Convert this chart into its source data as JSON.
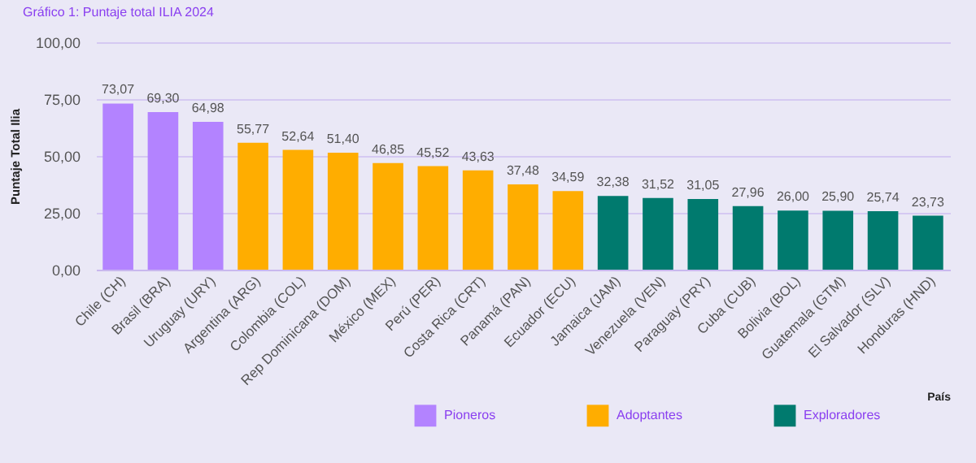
{
  "chart_data": {
    "type": "bar",
    "title": "Gráfico 1: Puntaje total ILIA 2024",
    "xlabel": "País",
    "ylabel": "Puntaje Total Ilia",
    "categories": [
      "Chile (CH)",
      "Brasil (BRA)",
      "Uruguay (URY)",
      "Argentina (ARG)",
      "Colombia (COL)",
      "Rep Dominicana (DOM)",
      "México (MEX)",
      "Perú (PER)",
      "Costa Rica (CRT)",
      "Panamá (PAN)",
      "Ecuador (ECU)",
      "Jamaica (JAM)",
      "Venezuela (VEN)",
      "Paraguay (PRY)",
      "Cuba (CUB)",
      "Bolivia (BOL)",
      "Guatemala (GTM)",
      "El Salvador (SLV)",
      "Honduras (HND)"
    ],
    "series": [
      {
        "name": "Pioneros",
        "color": "#b383ff",
        "values": [
          73.07,
          69.3,
          64.98,
          null,
          null,
          null,
          null,
          null,
          null,
          null,
          null,
          null,
          null,
          null,
          null,
          null,
          null,
          null,
          null
        ],
        "value_labels": [
          "73,07",
          "69,30",
          "64,98",
          null,
          null,
          null,
          null,
          null,
          null,
          null,
          null,
          null,
          null,
          null,
          null,
          null,
          null,
          null,
          null
        ]
      },
      {
        "name": "Adoptantes",
        "color": "#ffad00",
        "values": [
          null,
          null,
          null,
          55.77,
          52.64,
          51.4,
          46.85,
          45.52,
          43.63,
          37.48,
          34.59,
          null,
          null,
          null,
          null,
          null,
          null,
          null,
          null
        ],
        "value_labels": [
          null,
          null,
          null,
          "55,77",
          "52,64",
          "51,40",
          "46,85",
          "45,52",
          "43,63",
          "37,48",
          "34,59",
          null,
          null,
          null,
          null,
          null,
          null,
          null,
          null
        ]
      },
      {
        "name": "Exploradores",
        "color": "#007a6e",
        "values": [
          null,
          null,
          null,
          null,
          null,
          null,
          null,
          null,
          null,
          null,
          null,
          32.38,
          31.52,
          31.05,
          27.96,
          26.0,
          25.9,
          25.74,
          23.73
        ],
        "value_labels": [
          null,
          null,
          null,
          null,
          null,
          null,
          null,
          null,
          null,
          null,
          null,
          "32,38",
          "31,52",
          "31,05",
          "27,96",
          "26,00",
          "25,90",
          "25,74",
          "23,73"
        ]
      }
    ],
    "ylim": [
      0,
      100
    ],
    "yticks": [
      {
        "value": 0,
        "label": "0,00"
      },
      {
        "value": 25,
        "label": "25,00"
      },
      {
        "value": 50,
        "label": "50,00"
      },
      {
        "value": 75,
        "label": "75,00"
      },
      {
        "value": 100,
        "label": "100,00"
      }
    ],
    "grid": "y",
    "legend": "bottom right"
  }
}
